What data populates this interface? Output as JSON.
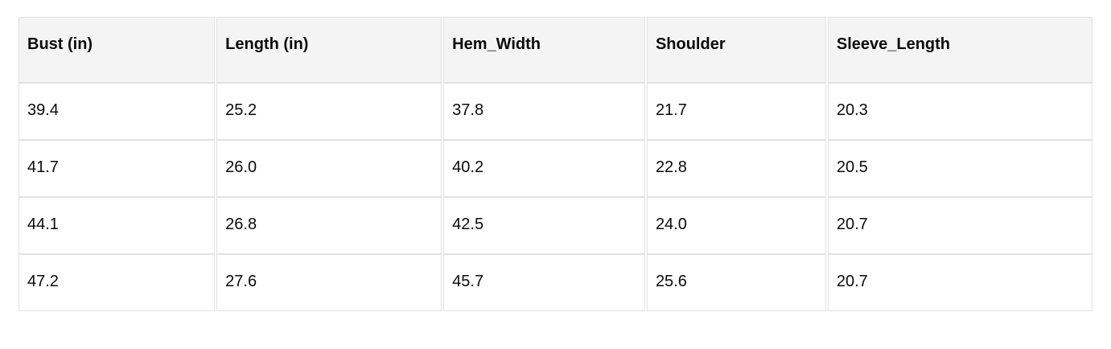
{
  "table": {
    "columns": [
      "Bust (in)",
      "Length (in)",
      "Hem_Width",
      "Shoulder",
      "Sleeve_Length"
    ],
    "rows": [
      [
        "39.4",
        "25.2",
        "37.8",
        "21.7",
        "20.3"
      ],
      [
        "41.7",
        "26.0",
        "40.2",
        "22.8",
        "20.5"
      ],
      [
        "44.1",
        "26.8",
        "42.5",
        "24.0",
        "20.7"
      ],
      [
        "47.2",
        "27.6",
        "45.7",
        "25.6",
        "20.7"
      ]
    ]
  },
  "colors": {
    "header_bg": "#f4f4f4",
    "cell_border": "#e2e2e2",
    "text": "#0b0b0b",
    "page_bg": "#ffffff"
  }
}
